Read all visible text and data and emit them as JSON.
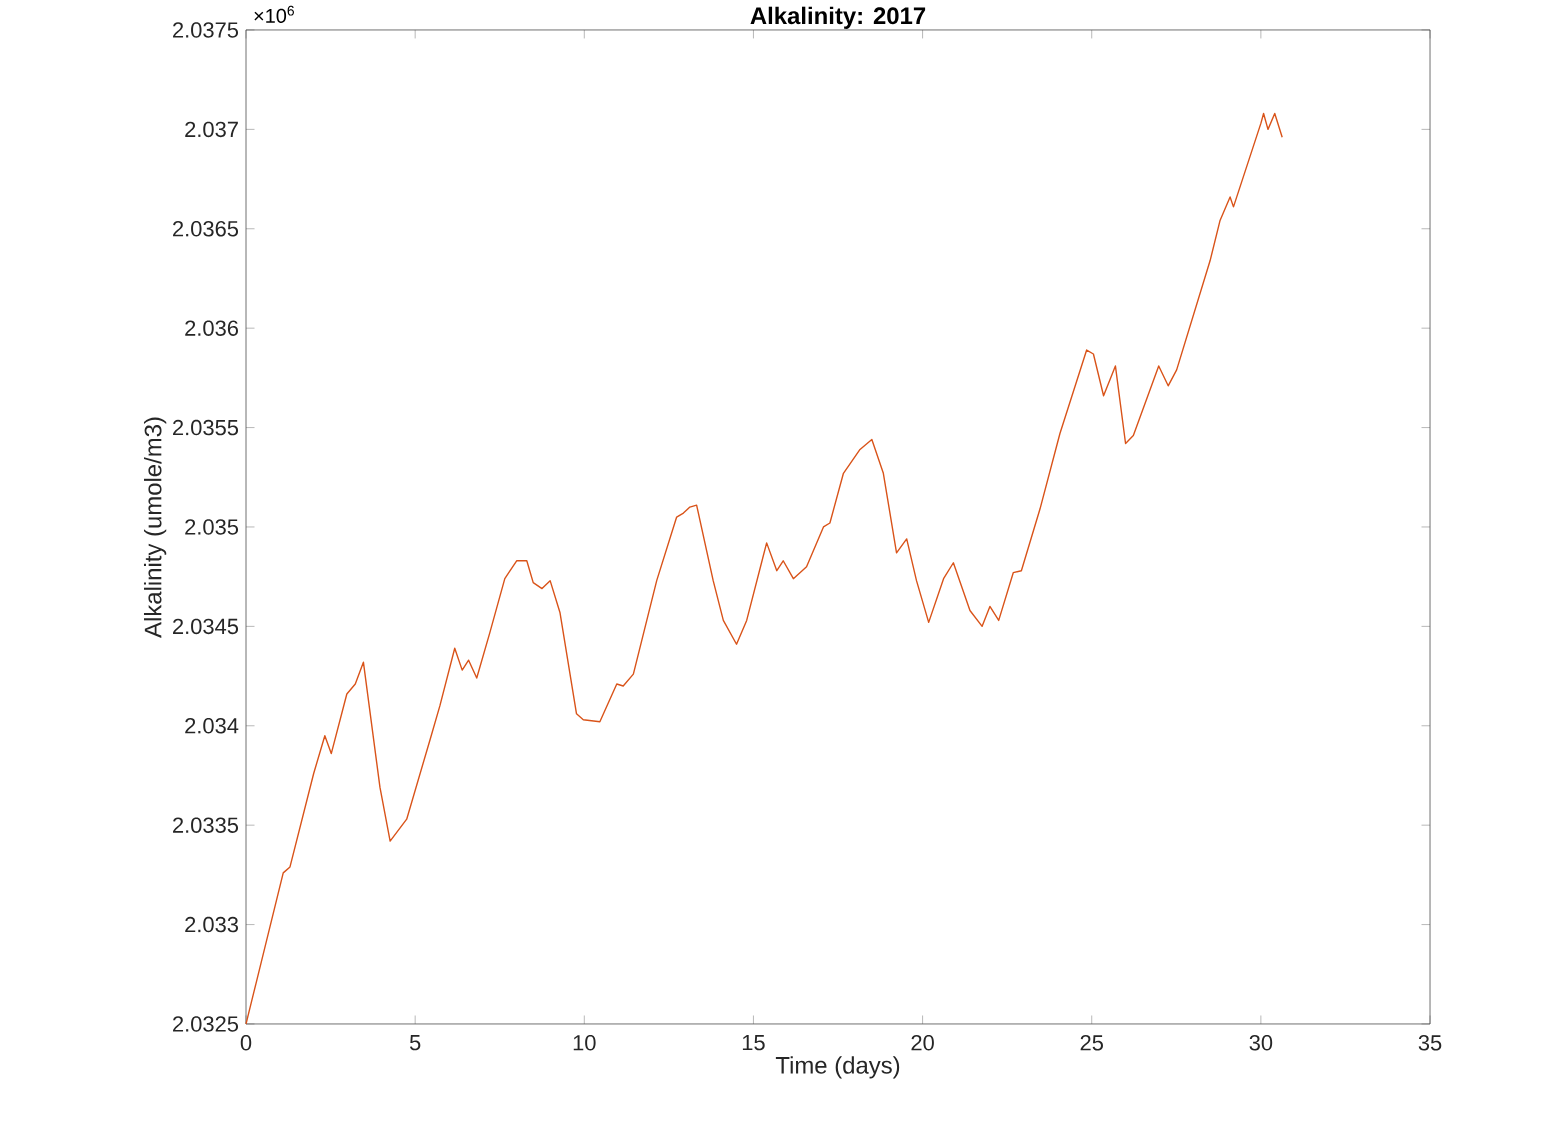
{
  "chart_data": {
    "type": "line",
    "title": "Alkalinity: 2017",
    "xlabel": "Time (days)",
    "ylabel": "Alkalinity (umole/m3)",
    "annotations": [
      "×10$^{6}$"
    ],
    "xlim": [
      0,
      35
    ],
    "xticks": [
      0,
      5,
      10,
      15,
      20,
      25,
      30,
      35
    ],
    "ylim": [
      2.0325,
      2.0375
    ],
    "yticks": [
      2.0325,
      2.033,
      2.0335,
      2.034,
      2.0345,
      2.035,
      2.0355,
      2.036,
      2.0365,
      2.037,
      2.0375
    ],
    "marker": "none",
    "line_style": "solid",
    "series": [
      {
        "color": "#d95319",
        "x": [
          0,
          1.1,
          1.3,
          2.0,
          2.33,
          2.52,
          2.98,
          3.23,
          3.47,
          3.96,
          4.26,
          4.75,
          5.44,
          5.73,
          6.17,
          6.39,
          6.58,
          6.82,
          7.21,
          7.65,
          8.0,
          8.3,
          8.49,
          8.75,
          8.99,
          9.28,
          9.77,
          9.97,
          10.46,
          10.96,
          11.15,
          11.45,
          12.14,
          12.73,
          12.93,
          13.12,
          13.32,
          13.81,
          14.11,
          14.5,
          14.8,
          15.39,
          15.69,
          15.88,
          16.18,
          16.57,
          17.07,
          17.26,
          17.66,
          18.15,
          18.5,
          18.84,
          19.23,
          19.53,
          19.82,
          20.18,
          20.62,
          20.91,
          21.4,
          21.76,
          21.99,
          22.25,
          22.68,
          22.92,
          23.47,
          24.06,
          24.85,
          25.05,
          25.35,
          25.7,
          26.0,
          26.23,
          26.98,
          27.26,
          27.51,
          28.5,
          28.79,
          29.09,
          29.19,
          30.0,
          30.08,
          30.21,
          30.41,
          30.63
        ],
        "values": [
          2.0325,
          2.03326,
          2.03329,
          2.03376,
          2.03395,
          2.03386,
          2.03416,
          2.03421,
          2.03432,
          2.03369,
          2.03342,
          2.03353,
          2.03393,
          2.0341,
          2.03439,
          2.03428,
          2.03433,
          2.03424,
          2.03447,
          2.03474,
          2.03483,
          2.03483,
          2.03472,
          2.03469,
          2.03473,
          2.03457,
          2.03406,
          2.03403,
          2.03402,
          2.03421,
          2.0342,
          2.03426,
          2.03473,
          2.03505,
          2.03507,
          2.0351,
          2.03511,
          2.03473,
          2.03453,
          2.03441,
          2.03453,
          2.03492,
          2.03478,
          2.03483,
          2.03474,
          2.0348,
          2.035,
          2.03502,
          2.03527,
          2.03539,
          2.03544,
          2.03527,
          2.03487,
          2.03494,
          2.03473,
          2.03452,
          2.03474,
          2.03482,
          2.03458,
          2.0345,
          2.0346,
          2.03453,
          2.03477,
          2.03478,
          2.03509,
          2.03547,
          2.03589,
          2.03587,
          2.03566,
          2.03581,
          2.03542,
          2.03546,
          2.03581,
          2.03571,
          2.03579,
          2.03634,
          2.03654,
          2.03666,
          2.03661,
          2.03703,
          2.03708,
          2.037,
          2.03708,
          2.03696
        ]
      }
    ]
  }
}
